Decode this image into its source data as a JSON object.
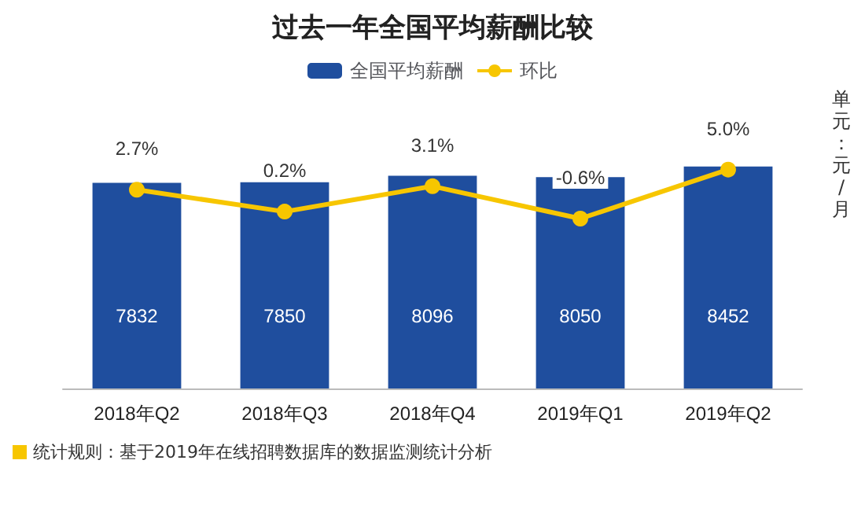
{
  "chart_data": {
    "type": "bar",
    "title": "过去一年全国平均薪酬比较",
    "categories": [
      "2018年Q2",
      "2018年Q3",
      "2018年Q4",
      "2019年Q1",
      "2019年Q2"
    ],
    "series": [
      {
        "name": "全国平均薪酬",
        "color": "#1f4e9e",
        "values": [
          7832,
          7850,
          8096,
          8050,
          8452
        ]
      },
      {
        "name": "环比",
        "type": "line",
        "axis": "y2",
        "color": "#f7c600",
        "values": [
          2.7,
          0.2,
          3.1,
          -0.6,
          5.0
        ],
        "value_labels": [
          "2.7%",
          "0.2%",
          "3.1%",
          "-0.6%",
          "5.0%"
        ]
      }
    ],
    "tick_labels": "x",
    "data_labels": true,
    "legend": "top",
    "marker": "circle",
    "annotations": [
      "单元：元/月",
      "统计规则：基于2019年在线招聘数据库的数据监测统计分析"
    ]
  }
}
